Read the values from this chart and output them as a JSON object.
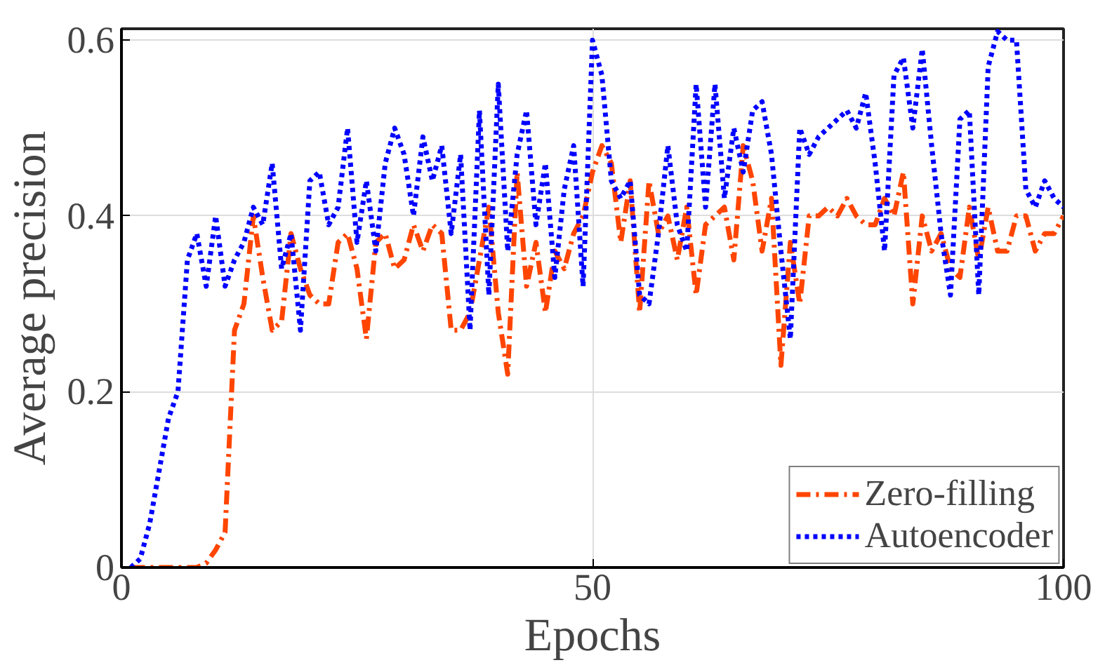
{
  "chart_data": {
    "type": "line",
    "xlabel": "Epochs",
    "ylabel": "Average precision",
    "x": [
      1,
      2,
      3,
      4,
      5,
      6,
      7,
      8,
      9,
      10,
      11,
      12,
      13,
      14,
      15,
      16,
      17,
      18,
      19,
      20,
      21,
      22,
      23,
      24,
      25,
      26,
      27,
      28,
      29,
      30,
      31,
      32,
      33,
      34,
      35,
      36,
      37,
      38,
      39,
      40,
      41,
      42,
      43,
      44,
      45,
      46,
      47,
      48,
      49,
      50,
      51,
      52,
      53,
      54,
      55,
      56,
      57,
      58,
      59,
      60,
      61,
      62,
      63,
      64,
      65,
      66,
      67,
      68,
      69,
      70,
      71,
      72,
      73,
      74,
      75,
      76,
      77,
      78,
      79,
      80,
      81,
      82,
      83,
      84,
      85,
      86,
      87,
      88,
      89,
      90,
      91,
      92,
      93,
      94,
      95,
      96,
      97,
      98,
      99,
      100
    ],
    "series": [
      {
        "name": "Zero-filling",
        "color": "#ff4500",
        "line_style": "dashed",
        "values": [
          0,
          0,
          0,
          0,
          0,
          0,
          0,
          0,
          0.005,
          0.02,
          0.04,
          0.27,
          0.3,
          0.4,
          0.33,
          0.27,
          0.28,
          0.38,
          0.34,
          0.31,
          0.3,
          0.3,
          0.37,
          0.38,
          0.34,
          0.26,
          0.37,
          0.38,
          0.34,
          0.35,
          0.39,
          0.36,
          0.39,
          0.38,
          0.27,
          0.27,
          0.29,
          0.35,
          0.41,
          0.29,
          0.22,
          0.45,
          0.32,
          0.37,
          0.29,
          0.36,
          0.34,
          0.38,
          0.4,
          0.45,
          0.48,
          0.46,
          0.37,
          0.44,
          0.29,
          0.44,
          0.38,
          0.4,
          0.35,
          0.41,
          0.31,
          0.39,
          0.4,
          0.41,
          0.35,
          0.48,
          0.44,
          0.36,
          0.42,
          0.23,
          0.37,
          0.3,
          0.4,
          0.4,
          0.41,
          0.4,
          0.42,
          0.4,
          0.39,
          0.39,
          0.42,
          0.4,
          0.45,
          0.3,
          0.4,
          0.36,
          0.38,
          0.34,
          0.33,
          0.41,
          0.35,
          0.41,
          0.36,
          0.36,
          0.4,
          0.4,
          0.36,
          0.38,
          0.38,
          0.4
        ]
      },
      {
        "name": "Autoencoder",
        "color": "#0000ff",
        "line_style": "dotted",
        "values": [
          0,
          0.01,
          0.05,
          0.11,
          0.17,
          0.2,
          0.35,
          0.38,
          0.32,
          0.4,
          0.32,
          0.35,
          0.37,
          0.41,
          0.39,
          0.46,
          0.34,
          0.38,
          0.27,
          0.44,
          0.45,
          0.39,
          0.41,
          0.5,
          0.37,
          0.44,
          0.36,
          0.46,
          0.5,
          0.47,
          0.4,
          0.49,
          0.44,
          0.48,
          0.38,
          0.47,
          0.27,
          0.52,
          0.31,
          0.55,
          0.36,
          0.47,
          0.52,
          0.39,
          0.46,
          0.33,
          0.43,
          0.48,
          0.32,
          0.6,
          0.56,
          0.44,
          0.42,
          0.44,
          0.31,
          0.3,
          0.38,
          0.48,
          0.39,
          0.36,
          0.55,
          0.41,
          0.55,
          0.42,
          0.5,
          0.45,
          0.52,
          0.53,
          0.47,
          0.36,
          0.26,
          0.5,
          0.47,
          0.49,
          0.5,
          0.51,
          0.52,
          0.5,
          0.54,
          0.46,
          0.36,
          0.56,
          0.58,
          0.5,
          0.59,
          0.48,
          0.38,
          0.31,
          0.51,
          0.52,
          0.31,
          0.57,
          0.61,
          0.6,
          0.6,
          0.43,
          0.41,
          0.44,
          0.42,
          0.41
        ]
      }
    ],
    "xlim": [
      0,
      100
    ],
    "xticks": [
      0,
      50,
      100
    ],
    "ylim": [
      0,
      0.613
    ],
    "yticks": [
      0,
      0.2,
      0.4,
      0.6
    ],
    "grid": true,
    "legend": "bottom right"
  }
}
